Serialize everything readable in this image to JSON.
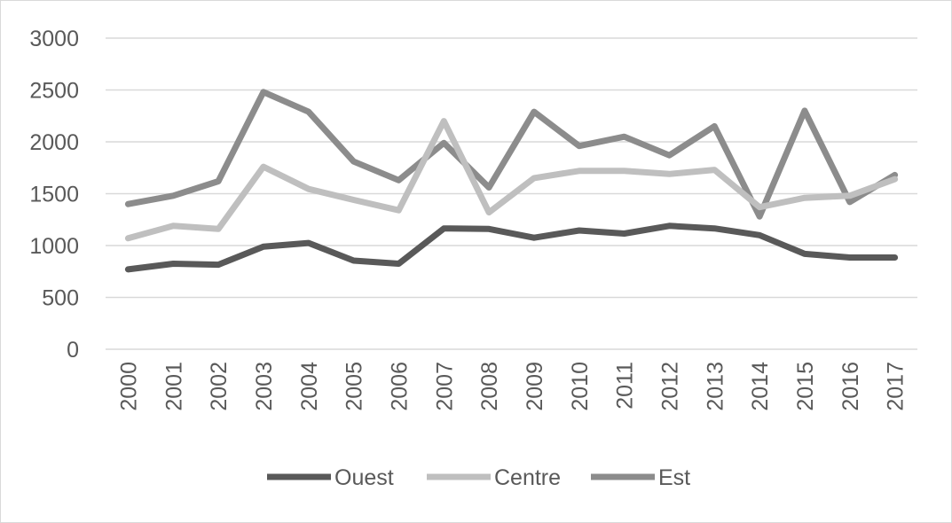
{
  "chart_data": {
    "type": "line",
    "title": "",
    "xlabel": "",
    "ylabel": "",
    "x": [
      "2000",
      "2001",
      "2002",
      "2003",
      "2004",
      "2005",
      "2006",
      "2007",
      "2008",
      "2009",
      "2010",
      "2011",
      "2012",
      "2013",
      "2014",
      "2015",
      "2016",
      "2017"
    ],
    "ylim": [
      0,
      3000
    ],
    "yticks": [
      0,
      500,
      1000,
      1500,
      2000,
      2500,
      3000
    ],
    "grid": true,
    "legend_position": "bottom",
    "series": [
      {
        "name": "Ouest",
        "color": "#595959",
        "values": [
          770,
          825,
          815,
          990,
          1025,
          855,
          825,
          1165,
          1160,
          1075,
          1145,
          1115,
          1190,
          1165,
          1100,
          920,
          885,
          885
        ]
      },
      {
        "name": "Centre",
        "color": "#bfbfbf",
        "values": [
          1070,
          1190,
          1160,
          1760,
          1545,
          1440,
          1340,
          2200,
          1320,
          1650,
          1720,
          1720,
          1690,
          1730,
          1370,
          1460,
          1480,
          1640
        ]
      },
      {
        "name": "Est",
        "color": "#8c8c8c",
        "values": [
          1400,
          1480,
          1620,
          2480,
          2290,
          1810,
          1630,
          1990,
          1560,
          2290,
          1960,
          2050,
          1870,
          2150,
          1280,
          2300,
          1420,
          1680
        ]
      }
    ]
  }
}
